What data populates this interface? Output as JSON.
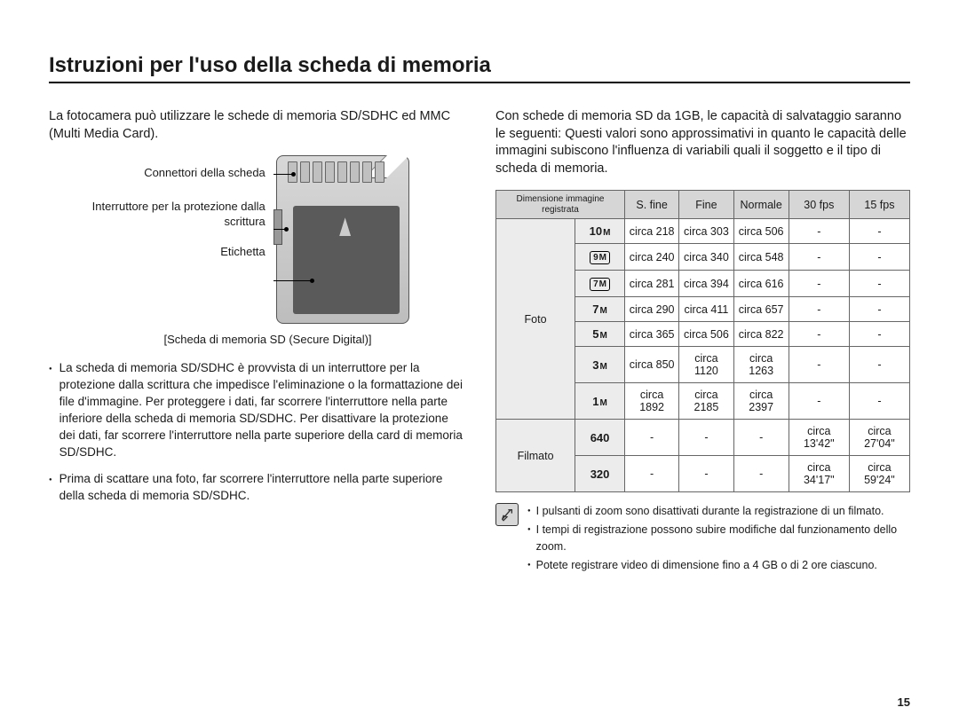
{
  "title": "Istruzioni per l'uso della scheda di memoria",
  "page_number": "15",
  "left": {
    "intro": "La fotocamera può utilizzare le schede di memoria SD/SDHC ed MMC (Multi Media Card).",
    "diagram_labels": {
      "connectors": "Connettori della scheda",
      "switch": "Interruttore per la protezione dalla scrittura",
      "label": "Etichetta"
    },
    "caption": "[Scheda di memoria SD (Secure Digital)]",
    "bullets": [
      "La scheda di memoria SD/SDHC è provvista di un interruttore per la protezione dalla scrittura che impedisce l'eliminazione o la formattazione dei file d'immagine. Per proteggere i dati, far scorrere l'interruttore nella parte inferiore della scheda di memoria SD/SDHC. Per disattivare la protezione dei dati, far scorrere l'interruttore nella parte superiore della card di memoria SD/SDHC.",
      "Prima di scattare una foto, far scorrere l'interruttore nella parte superiore della scheda di memoria SD/SDHC."
    ]
  },
  "right": {
    "intro": "Con schede di memoria SD da 1GB, le capacità di salvataggio saranno le seguenti: Questi valori sono approssimativi in quanto le capacità delle immagini subiscono l'influenza di variabili quali il soggetto e il tipo di scheda di memoria.",
    "table": {
      "headers": [
        "Dimensione immagine registrata",
        "S. fine",
        "Fine",
        "Normale",
        "30 fps",
        "15 fps"
      ],
      "foto_label": "Foto",
      "filmato_label": "Filmato",
      "foto_rows": [
        {
          "size": "10M",
          "style": "plain",
          "sfine": "circa 218",
          "fine": "circa 303",
          "normale": "circa 506",
          "fps30": "-",
          "fps15": "-"
        },
        {
          "size": "9M",
          "style": "box",
          "sfine": "circa 240",
          "fine": "circa 340",
          "normale": "circa 548",
          "fps30": "-",
          "fps15": "-"
        },
        {
          "size": "7M",
          "style": "box",
          "sfine": "circa 281",
          "fine": "circa 394",
          "normale": "circa 616",
          "fps30": "-",
          "fps15": "-"
        },
        {
          "size": "7M",
          "style": "plain",
          "sfine": "circa 290",
          "fine": "circa 411",
          "normale": "circa 657",
          "fps30": "-",
          "fps15": "-"
        },
        {
          "size": "5M",
          "style": "plain",
          "sfine": "circa 365",
          "fine": "circa 506",
          "normale": "circa 822",
          "fps30": "-",
          "fps15": "-"
        },
        {
          "size": "3M",
          "style": "plain",
          "sfine": "circa 850",
          "fine": "circa 1120",
          "normale": "circa 1263",
          "fps30": "-",
          "fps15": "-"
        },
        {
          "size": "1M",
          "style": "plain",
          "sfine": "circa 1892",
          "fine": "circa 2185",
          "normale": "circa 2397",
          "fps30": "-",
          "fps15": "-"
        }
      ],
      "filmato_rows": [
        {
          "size": "640",
          "sfine": "-",
          "fine": "-",
          "normale": "-",
          "fps30": "circa 13'42\"",
          "fps15": "circa  27'04\""
        },
        {
          "size": "320",
          "sfine": "-",
          "fine": "-",
          "normale": "-",
          "fps30": "circa 34'17\"",
          "fps15": "circa 59'24\""
        }
      ]
    },
    "notes": [
      "I pulsanti di zoom sono disattivati durante la registrazione di un filmato.",
      "I tempi di registrazione possono subire modifiche dal funzionamento dello zoom.",
      "Potete registrare video di dimensione fino a 4 GB o di 2 ore ciascuno."
    ]
  },
  "colors": {
    "table_header_bg": "#d6d6d6",
    "table_cell_bg": "#ececec",
    "border": "#666666",
    "text": "#1a1a1a"
  }
}
